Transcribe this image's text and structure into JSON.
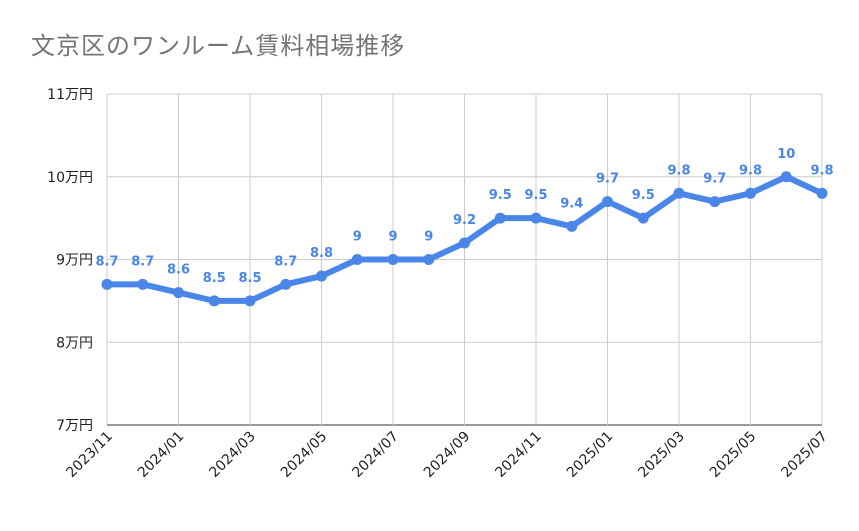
{
  "chart_data": {
    "type": "line",
    "title": "文京区のワンルーム賃料相場推移",
    "xlabel": "",
    "ylabel": "",
    "ylim": [
      7,
      11
    ],
    "y_ticks": [
      7,
      8,
      9,
      10,
      11
    ],
    "y_tick_labels": [
      "7万円",
      "8万円",
      "9万円",
      "10万円",
      "11万円"
    ],
    "y_unit_suffix": "万円",
    "grid": true,
    "legend": "none",
    "line_color": "#4a86e8",
    "x": [
      "2023/11",
      "2023/12",
      "2024/01",
      "2024/02",
      "2024/03",
      "2024/04",
      "2024/05",
      "2024/06",
      "2024/07",
      "2024/08",
      "2024/09",
      "2024/10",
      "2024/11",
      "2024/12",
      "2025/01",
      "2025/02",
      "2025/03",
      "2025/04",
      "2025/05",
      "2025/06",
      "2025/07"
    ],
    "x_tick_labels": [
      "2023/11",
      "2024/01",
      "2024/03",
      "2024/05",
      "2024/07",
      "2024/09",
      "2024/11",
      "2025/01",
      "2025/03",
      "2025/05",
      "2025/07"
    ],
    "series": [
      {
        "name": "賃料相場",
        "values": [
          8.7,
          8.7,
          8.6,
          8.5,
          8.5,
          8.7,
          8.8,
          9,
          9,
          9,
          9.2,
          9.5,
          9.5,
          9.4,
          9.7,
          9.5,
          9.8,
          9.7,
          9.8,
          10,
          9.8
        ]
      }
    ]
  }
}
